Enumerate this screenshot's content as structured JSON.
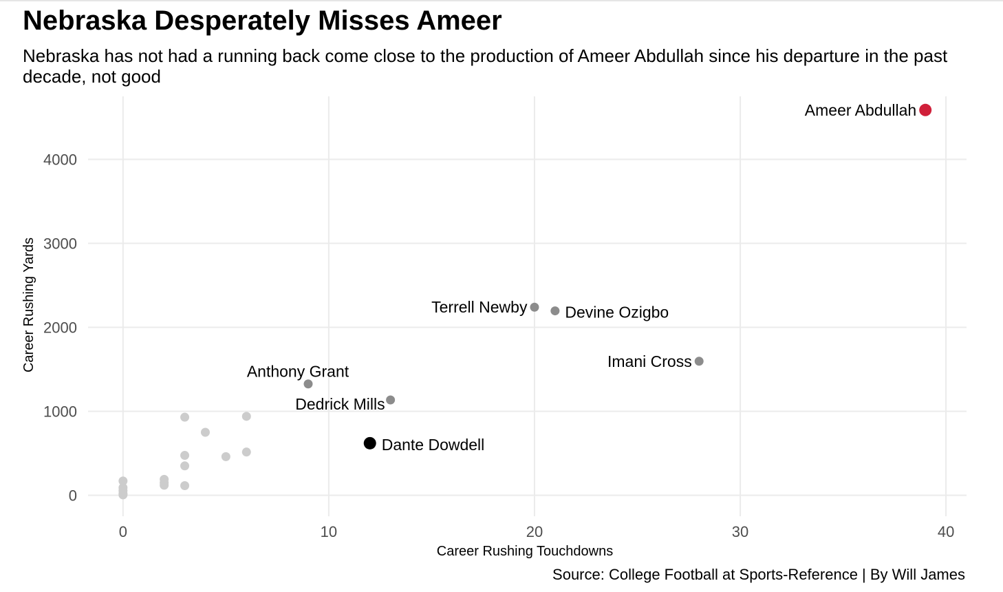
{
  "chart_data": {
    "type": "scatter",
    "title": "Nebraska Desperately Misses Ameer",
    "subtitle": "Nebraska has not had a running back come close to the production of Ameer Abdullah since his departure in the past decade, not good",
    "caption": "Source: College Football at Sports-Reference | By Will James",
    "xlabel": "Career Rushing Touchdowns",
    "ylabel": "Career Rushing Yards",
    "xlim": [
      -1.7,
      41
    ],
    "ylim": [
      -250,
      4750
    ],
    "x_ticks": [
      0,
      10,
      20,
      30,
      40
    ],
    "x_tick_labels": [
      "0",
      "10",
      "20",
      "30",
      "40"
    ],
    "y_ticks": [
      0,
      1000,
      2000,
      3000,
      4000
    ],
    "y_tick_labels": [
      "0",
      "1000",
      "2000",
      "3000",
      "4000"
    ],
    "grid": true,
    "colors": {
      "highlight": "#d0203a",
      "labeled": "#8c8c8c",
      "featured": "#000000",
      "other": "#cccccc",
      "grid": "#ebebeb",
      "tick_text": "#4d4d4d"
    },
    "labeled_points": [
      {
        "name": "Ameer Abdullah",
        "x": 39,
        "y": 4588,
        "group": "highlight",
        "label_pos": "left"
      },
      {
        "name": "Terrell Newby",
        "x": 20,
        "y": 2240,
        "group": "labeled",
        "label_pos": "left"
      },
      {
        "name": "Devine Ozigbo",
        "x": 21,
        "y": 2196,
        "group": "labeled",
        "label_pos": "right"
      },
      {
        "name": "Imani Cross",
        "x": 28,
        "y": 1596,
        "group": "labeled",
        "label_pos": "left"
      },
      {
        "name": "Anthony Grant",
        "x": 9,
        "y": 1326,
        "group": "labeled",
        "label_pos": "above"
      },
      {
        "name": "Dedrick Mills",
        "x": 13,
        "y": 1135,
        "group": "labeled",
        "label_pos": "left-below"
      },
      {
        "name": "Dante Dowdell",
        "x": 12,
        "y": 620,
        "group": "featured",
        "label_pos": "right"
      }
    ],
    "other_points": [
      {
        "x": 0,
        "y": 170
      },
      {
        "x": 0,
        "y": 90
      },
      {
        "x": 0,
        "y": 55
      },
      {
        "x": 0,
        "y": 20
      },
      {
        "x": 0,
        "y": 5
      },
      {
        "x": 2,
        "y": 190
      },
      {
        "x": 2,
        "y": 150
      },
      {
        "x": 2,
        "y": 120
      },
      {
        "x": 3,
        "y": 930
      },
      {
        "x": 3,
        "y": 475
      },
      {
        "x": 3,
        "y": 350
      },
      {
        "x": 3,
        "y": 115
      },
      {
        "x": 4,
        "y": 750
      },
      {
        "x": 5,
        "y": 460
      },
      {
        "x": 6,
        "y": 940
      },
      {
        "x": 6,
        "y": 515
      }
    ]
  }
}
